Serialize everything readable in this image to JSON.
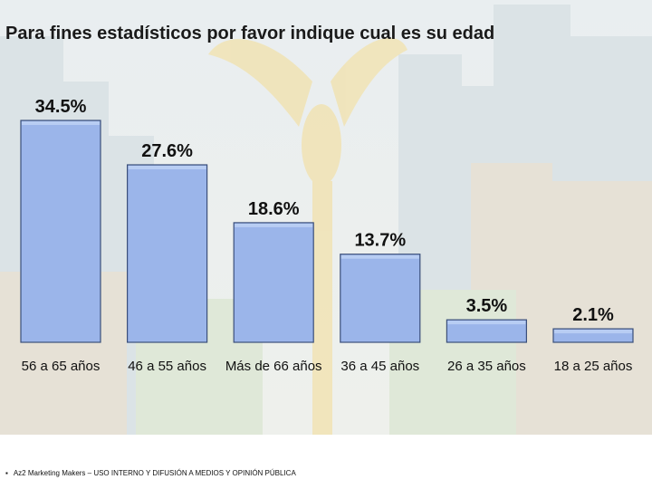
{
  "title": "Para fines estadísticos por favor indique cual es su edad",
  "footer": "Az2 Marketing Makers – USO INTERNO Y DIFUSIÓN A MEDIOS Y OPINIÓN PÚBLICA",
  "colors": {
    "bar_fill": "#9bb5ea",
    "bar_top": "#b8cdf3",
    "bar_edge": "#3b4f7a",
    "text": "#111111"
  },
  "chart_data": {
    "type": "bar",
    "title": "Para fines estadísticos por favor indique cual es su edad",
    "categories": [
      "56 a 65 años",
      "46 a 55 años",
      "Más de 66 años",
      "36 a 45 años",
      "26 a 35 años",
      "18 a 25 años"
    ],
    "values": [
      34.5,
      27.6,
      18.6,
      13.7,
      3.5,
      2.1
    ],
    "labels": [
      "34.5%",
      "27.6%",
      "18.6%",
      "13.7%",
      "3.5%",
      "2.1%"
    ],
    "unit": "%",
    "ylim": [
      0,
      34.5
    ],
    "grid": false,
    "legend": "none"
  }
}
